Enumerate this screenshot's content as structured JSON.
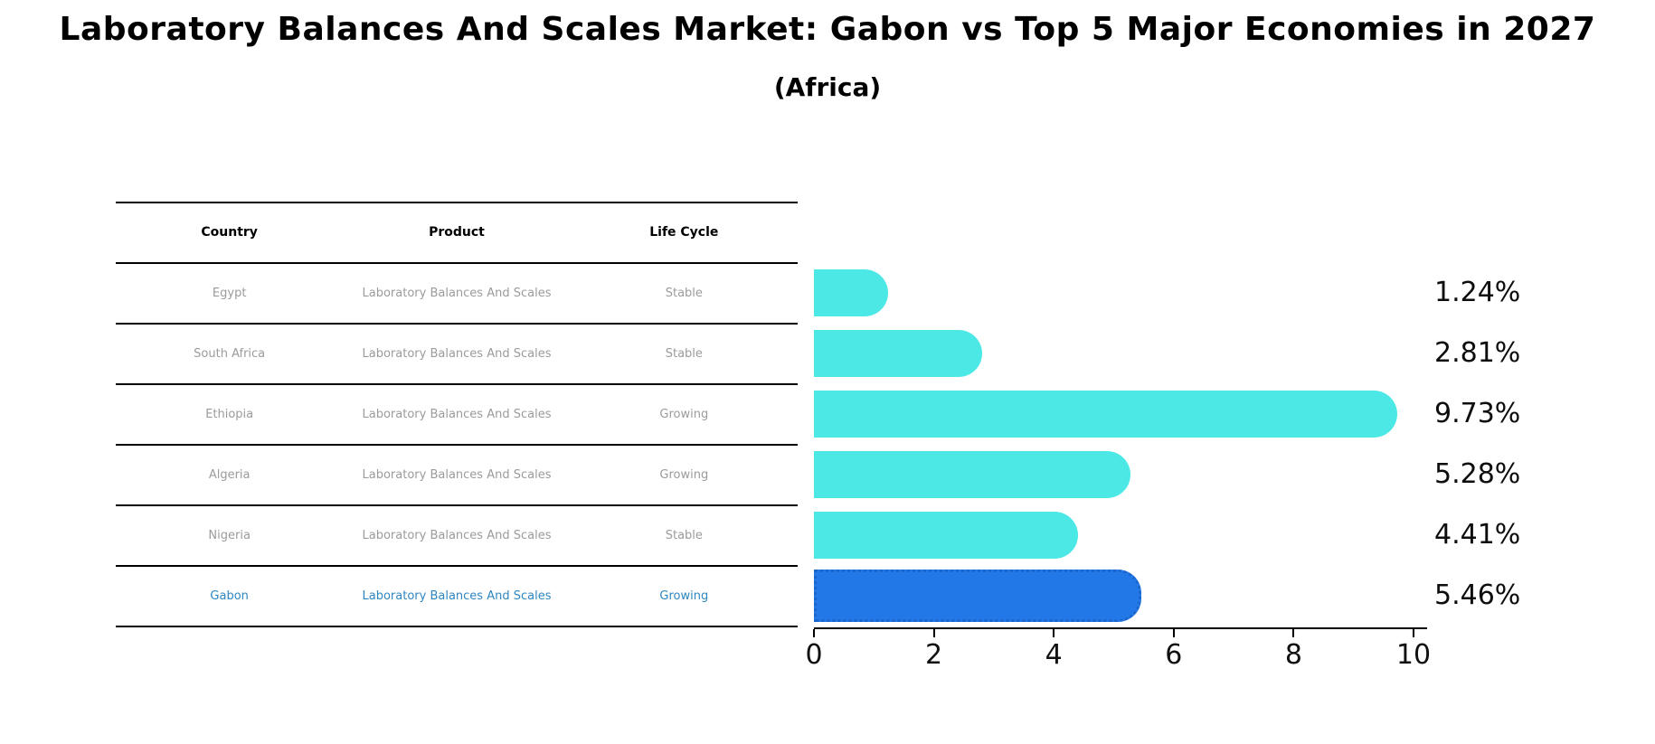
{
  "title": "Laboratory Balances And Scales Market: Gabon vs Top 5 Major Economies in 2027",
  "subtitle": "(Africa)",
  "table": {
    "headers": [
      "Country",
      "Product",
      "Life Cycle"
    ],
    "rows": [
      {
        "country": "Egypt",
        "product": "Laboratory Balances And Scales",
        "life_cycle": "Stable",
        "highlight": false
      },
      {
        "country": "South Africa",
        "product": "Laboratory Balances And Scales",
        "life_cycle": "Stable",
        "highlight": false
      },
      {
        "country": "Ethiopia",
        "product": "Laboratory Balances And Scales",
        "life_cycle": "Growing",
        "highlight": false
      },
      {
        "country": "Algeria",
        "product": "Laboratory Balances And Scales",
        "life_cycle": "Growing",
        "highlight": false
      },
      {
        "country": "Nigeria",
        "product": "Laboratory Balances And Scales",
        "life_cycle": "Stable",
        "highlight": false
      },
      {
        "country": "Gabon",
        "product": "Laboratory Balances And Scales",
        "life_cycle": "Growing",
        "highlight": true
      }
    ]
  },
  "chart_data": {
    "type": "bar",
    "orientation": "horizontal",
    "title": "Laboratory Balances And Scales Market: Gabon vs Top 5 Major Economies in 2027 (Africa)",
    "categories": [
      "Egypt",
      "South Africa",
      "Ethiopia",
      "Algeria",
      "Nigeria",
      "Gabon"
    ],
    "values": [
      1.24,
      2.81,
      9.73,
      5.28,
      4.41,
      5.46
    ],
    "value_labels": [
      "1.24%",
      "2.81%",
      "9.73%",
      "5.28%",
      "4.41%",
      "5.46%"
    ],
    "xlabel": "",
    "ylabel": "",
    "xlim": [
      0,
      10.2
    ],
    "x_ticks": [
      0,
      2,
      4,
      6,
      8,
      10
    ],
    "grid": false,
    "legend_position": "none",
    "highlight_index": 5,
    "highlight_category": "Gabon"
  },
  "colors": {
    "bar": "#4be8e6",
    "highlight_bar": "#2378e8",
    "highlight_bar_border": "#1a66cc",
    "highlight_text": "#2e86c1",
    "muted_text": "#9b9b9b",
    "header_text": "#000000",
    "axis": "#000000"
  }
}
